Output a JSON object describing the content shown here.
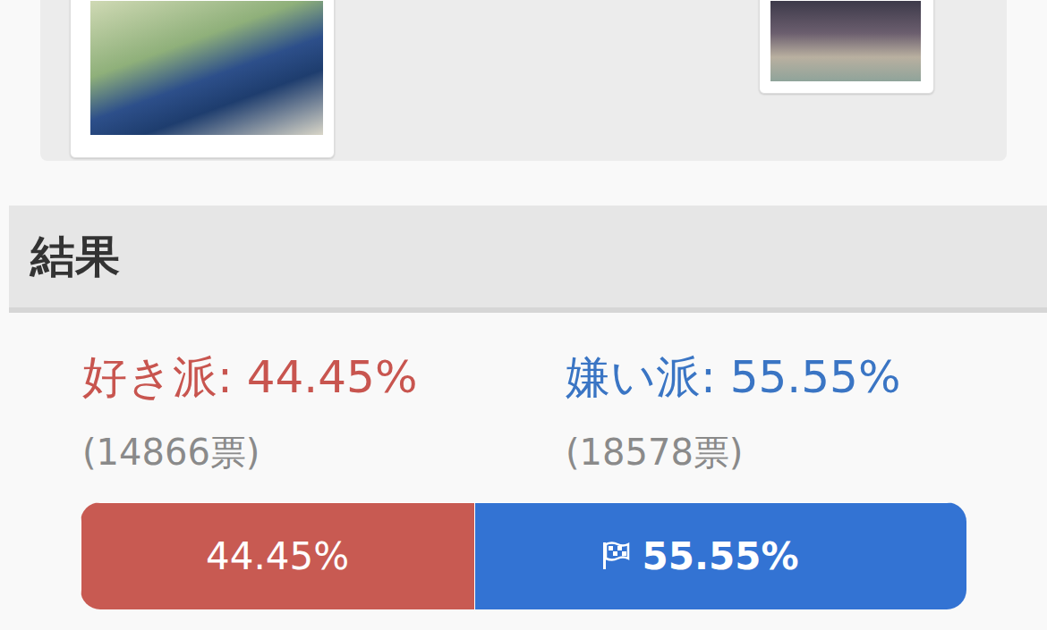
{
  "header": {
    "title": "結果"
  },
  "options": [
    {
      "summary": "好き派: 44.45%",
      "votes": "(14866票)",
      "color": "#c8554f"
    },
    {
      "summary": "嫌い派: 55.55%",
      "votes": "(18578票)",
      "color": "#3a75c4"
    }
  ],
  "result": {
    "winner": "嫌い派"
  },
  "chart_data": {
    "type": "bar",
    "orientation": "horizontal",
    "stacked": true,
    "xlim": [
      0,
      100
    ],
    "tick_labels": false,
    "data_labels": true,
    "series": [
      {
        "name": "好き派",
        "color": "#c85a52",
        "values": [
          44.45
        ],
        "value_labels": [
          "44.45%"
        ]
      },
      {
        "name": "嫌い派",
        "color": "#3373d3",
        "values": [
          55.55
        ],
        "value_labels": [
          "55.55%"
        ]
      }
    ]
  }
}
